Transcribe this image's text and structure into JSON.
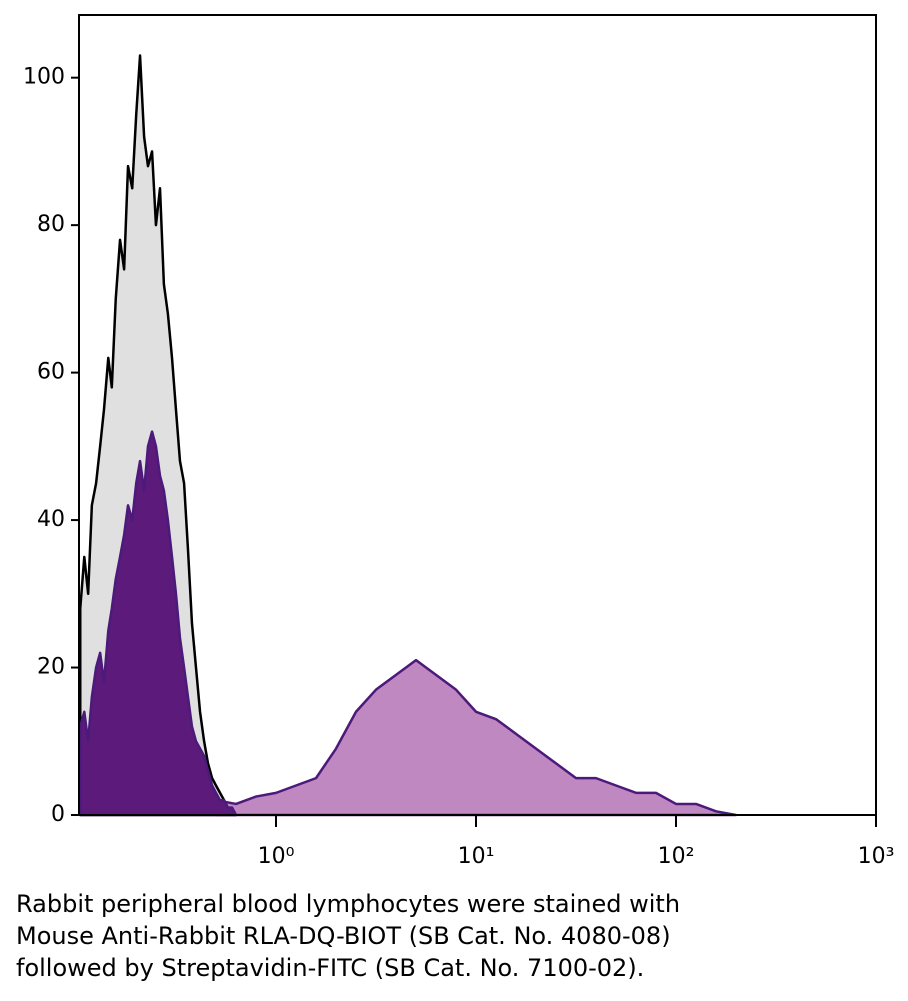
{
  "chart_data": {
    "type": "area",
    "xscale": "log",
    "xlim": [
      0.1035,
      1000
    ],
    "ylim": [
      0,
      108.5
    ],
    "xticks": [
      {
        "value": 1,
        "label": "10⁰"
      },
      {
        "value": 10,
        "label": "10¹"
      },
      {
        "value": 100,
        "label": "10²"
      },
      {
        "value": 1000,
        "label": "10³"
      }
    ],
    "yticks": [
      0,
      20,
      40,
      60,
      80,
      100
    ],
    "series": [
      {
        "color": "#e0e0e0",
        "line_color": "#000000",
        "x": [
          0.105,
          0.11,
          0.115,
          0.12,
          0.126,
          0.132,
          0.138,
          0.145,
          0.151,
          0.158,
          0.166,
          0.174,
          0.182,
          0.191,
          0.2,
          0.209,
          0.219,
          0.229,
          0.24,
          0.251,
          0.263,
          0.275,
          0.288,
          0.302,
          0.316,
          0.331,
          0.347,
          0.363,
          0.38,
          0.398,
          0.417,
          0.437,
          0.457,
          0.479,
          0.501,
          0.525,
          0.55,
          0.575,
          0.603,
          0.631
        ],
        "values": [
          28,
          35,
          30,
          42,
          45,
          50,
          55,
          62,
          58,
          70,
          78,
          74,
          88,
          85,
          95,
          103,
          92,
          88,
          90,
          80,
          85,
          72,
          68,
          62,
          55,
          48,
          45,
          36,
          26,
          20,
          14,
          10,
          7,
          5,
          4,
          3,
          2,
          1,
          1,
          0
        ]
      },
      {
        "color": "#c088c0",
        "line_color": "#4b1a7a",
        "x": [
          0.501,
          0.631,
          0.794,
          1,
          1.259,
          1.585,
          1.995,
          2.512,
          3.162,
          3.981,
          5.012,
          6.31,
          7.943,
          10,
          12.59,
          15.85,
          19.95,
          25.12,
          31.62,
          39.81,
          50.12,
          63.1,
          79.43,
          100,
          125.9,
          158.5,
          199.5
        ],
        "values": [
          2,
          1.5,
          2.5,
          3,
          4,
          5,
          9,
          14,
          17,
          19,
          21,
          19,
          17,
          14,
          13,
          11,
          9,
          7,
          5,
          5,
          4,
          3,
          3,
          1.5,
          1.5,
          0.5,
          0
        ]
      },
      {
        "color": "#5c1a7a",
        "line_color": "#4b1a7a",
        "x": [
          0.105,
          0.11,
          0.115,
          0.12,
          0.126,
          0.132,
          0.138,
          0.145,
          0.151,
          0.158,
          0.166,
          0.174,
          0.182,
          0.191,
          0.2,
          0.209,
          0.219,
          0.229,
          0.24,
          0.251,
          0.263,
          0.275,
          0.288,
          0.302,
          0.316,
          0.331,
          0.347,
          0.363,
          0.38,
          0.398,
          0.417,
          0.437,
          0.457,
          0.479,
          0.501,
          0.525,
          0.55,
          0.575,
          0.603,
          0.631
        ],
        "values": [
          12,
          14,
          10,
          16,
          20,
          22,
          18,
          25,
          28,
          32,
          35,
          38,
          42,
          40,
          45,
          48,
          44,
          50,
          52,
          50,
          46,
          44,
          40,
          35,
          30,
          24,
          20,
          16,
          12,
          10,
          9,
          8,
          6,
          4,
          3,
          2,
          2,
          1,
          1,
          0
        ]
      }
    ],
    "caption": [
      "Rabbit peripheral blood lymphocytes were stained with",
      "Mouse Anti-Rabbit RLA-DQ-BIOT (SB Cat. No. 4080-08)",
      "followed by Streptavidin-FITC (SB Cat. No. 7100-02)."
    ]
  }
}
